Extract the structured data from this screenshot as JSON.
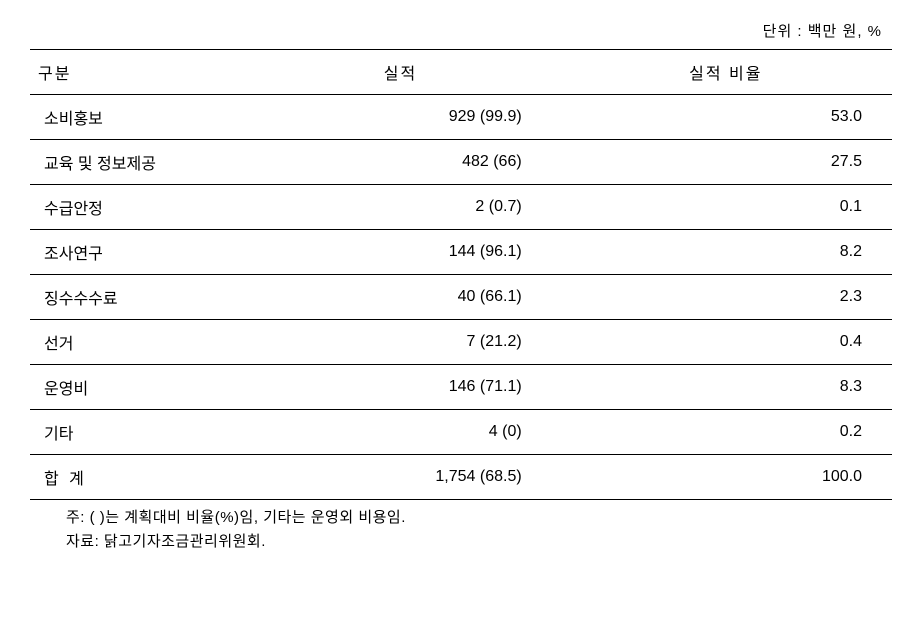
{
  "unit_label": "단위 : 백만 원, %",
  "table": {
    "type": "table",
    "columns": [
      "구분",
      "실적",
      "실적 비율"
    ],
    "column_widths": [
      "28%",
      "36%",
      "36%"
    ],
    "column_alignment": [
      "left",
      "right",
      "right"
    ],
    "rows": [
      {
        "category": "소비홍보",
        "performance": "929 (99.9)",
        "ratio": "53.0"
      },
      {
        "category": "교육 및 정보제공",
        "performance": "482 (66)",
        "ratio": "27.5"
      },
      {
        "category": "수급안정",
        "performance": "2 (0.7)",
        "ratio": "0.1"
      },
      {
        "category": "조사연구",
        "performance": "144 (96.1)",
        "ratio": "8.2"
      },
      {
        "category": "징수수수료",
        "performance": "40 (66.1)",
        "ratio": "2.3"
      },
      {
        "category": "선거",
        "performance": "7 (21.2)",
        "ratio": "0.4"
      },
      {
        "category": "운영비",
        "performance": "146 (71.1)",
        "ratio": "8.3"
      },
      {
        "category": "기타",
        "performance": "4 (0)",
        "ratio": "0.2"
      }
    ],
    "total_row": {
      "category": "합 계",
      "performance": "1,754 (68.5)",
      "ratio": "100.0"
    },
    "border_color": "#000000",
    "background_color": "#ffffff",
    "text_color": "#000000",
    "fontsize": 16,
    "header_fontsize": 16
  },
  "footnotes": {
    "note": "주: ( )는 계획대비 비율(%)임, 기타는 운영외 비용임.",
    "source": "자료: 닭고기자조금관리위원회."
  }
}
